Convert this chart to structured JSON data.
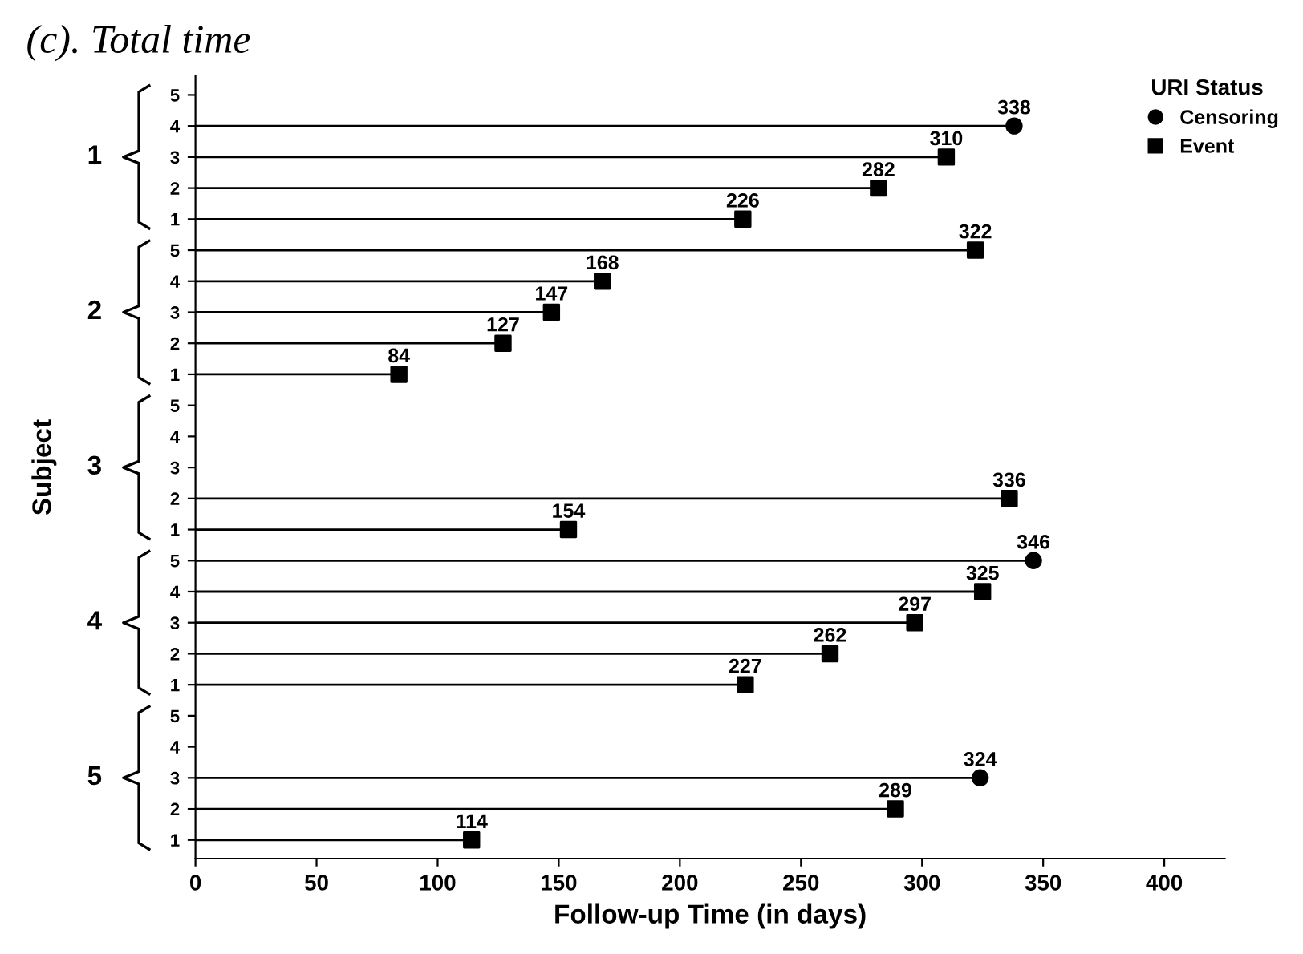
{
  "chart_data": {
    "type": "lollipop",
    "orientation": "horizontal",
    "title": "(c). Total time",
    "xlabel": "Follow-up Time (in days)",
    "ylabel": "Subject",
    "legend_title": "URI Status",
    "legend": "top right",
    "data_labels": true,
    "categories": [
      "5",
      "4",
      "3",
      "2",
      "1",
      "5",
      "4",
      "3",
      "2",
      "1",
      "5",
      "4",
      "3",
      "2",
      "1",
      "5",
      "4",
      "3",
      "2",
      "1",
      "5",
      "4",
      "3",
      "2",
      "1"
    ],
    "series": [
      {
        "name": "Censoring",
        "color": "#000000",
        "marker": "circle",
        "values": [
          null,
          338,
          null,
          null,
          null,
          null,
          null,
          null,
          null,
          null,
          null,
          null,
          null,
          null,
          null,
          346,
          null,
          null,
          null,
          null,
          null,
          null,
          324,
          null,
          null
        ]
      },
      {
        "name": "Event",
        "color": "#000000",
        "marker": "square",
        "values": [
          null,
          null,
          310,
          282,
          226,
          322,
          168,
          147,
          127,
          84,
          null,
          null,
          null,
          336,
          154,
          null,
          325,
          297,
          262,
          227,
          null,
          null,
          null,
          289,
          114
        ]
      }
    ],
    "annotations": [
      "1",
      "2",
      "3",
      "4",
      "5"
    ],
    "xlim": [
      0,
      425
    ],
    "xticks": [
      0,
      50,
      100,
      150,
      200,
      250,
      300,
      350,
      400
    ]
  }
}
